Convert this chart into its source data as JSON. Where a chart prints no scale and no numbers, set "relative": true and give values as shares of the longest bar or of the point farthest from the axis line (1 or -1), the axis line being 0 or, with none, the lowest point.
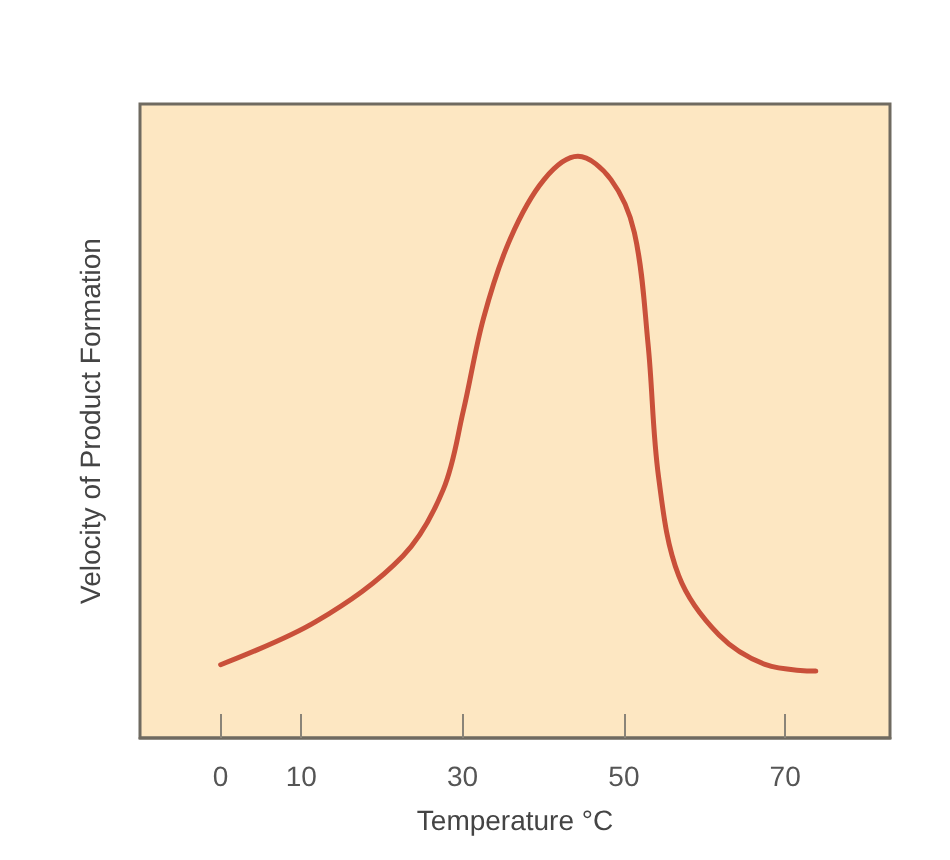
{
  "chart_data": {
    "type": "line",
    "xlabel": "Temperature °C",
    "ylabel": "Velocity of Product Formation",
    "relative": true,
    "xlim": [
      -10,
      83
    ],
    "xticks": [
      0,
      10,
      30,
      50,
      70
    ],
    "grid": false,
    "marker": "none",
    "line_style": "solid",
    "x": [
      0,
      11.8,
      22.6,
      27.6,
      30.1,
      32.6,
      35.9,
      40.1,
      44.3,
      48.4,
      51.3,
      53,
      54.3,
      56.8,
      61.8,
      67.6,
      73.8
    ],
    "series": [
      {
        "color": "#c9503a",
        "values": [
          0.126,
          0.2,
          0.313,
          0.427,
          0.563,
          0.722,
          0.858,
          0.96,
          1,
          0.96,
          0.869,
          0.677,
          0.449,
          0.279,
          0.177,
          0.126,
          0.115
        ]
      }
    ]
  }
}
